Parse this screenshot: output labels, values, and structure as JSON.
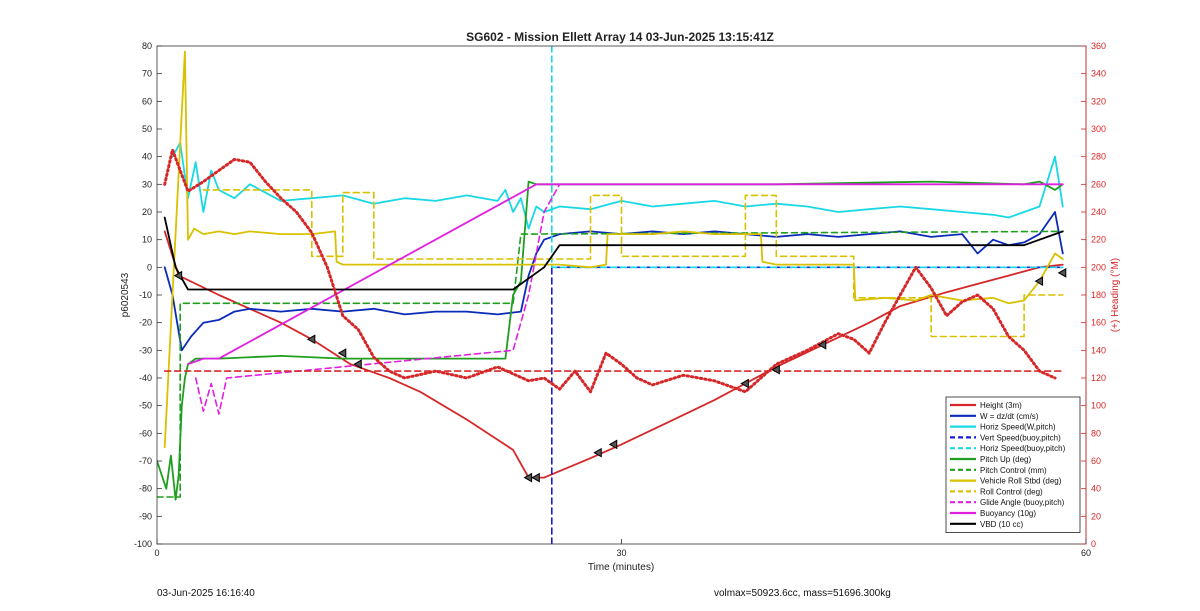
{
  "chart_data": {
    "type": "line",
    "title": "SG602 - Mission Ellett Array 14 03-Jun-2025 13:15:41Z",
    "xlabel": "Time (minutes)",
    "ylabel": "p6020543",
    "y2label": "(+) Heading (°M)",
    "xlim": [
      0,
      60
    ],
    "ylim": [
      -100,
      80
    ],
    "y2lim": [
      0,
      360
    ],
    "xticks": [
      "0",
      "30",
      "60"
    ],
    "yticks": [
      "80",
      "70",
      "60",
      "50",
      "40",
      "30",
      "20",
      "10",
      "0",
      "-10",
      "-20",
      "-30",
      "-40",
      "-50",
      "-60",
      "-70",
      "-80",
      "-90",
      "-100"
    ],
    "y2ticks": [
      "360",
      "340",
      "320",
      "300",
      "280",
      "260",
      "240",
      "220",
      "200",
      "180",
      "160",
      "140",
      "120",
      "100",
      "80",
      "60",
      "40",
      "20",
      "0"
    ],
    "grid": false,
    "legend_position": "bottom-right",
    "series": [
      {
        "name": "Height (3m)",
        "color": "#d62728",
        "style": "solid",
        "axis": "left",
        "x": [
          0.5,
          1.4,
          4,
          8,
          10,
          12.5,
          15,
          17,
          20,
          23,
          24,
          25,
          28,
          30,
          33,
          36,
          38,
          40,
          43,
          46,
          48,
          51,
          53,
          55,
          57,
          58.5
        ],
        "y": [
          13,
          -3,
          -10,
          -20,
          -26,
          -35,
          -40,
          -45,
          -55,
          -66,
          -76,
          -76,
          -69,
          -64,
          -56,
          -48,
          -42,
          -36,
          -28,
          -20,
          -14,
          -9,
          -6,
          -3,
          0,
          1
        ]
      },
      {
        "name": "W = dz/dt (cm/s)",
        "color": "#0a2bb8",
        "style": "solid",
        "axis": "left",
        "x": [
          0.5,
          1,
          1.6,
          2.2,
          3,
          4,
          5,
          6,
          8,
          10,
          12,
          14,
          16,
          18,
          20,
          22,
          23.5,
          24,
          24.5,
          25,
          26,
          28,
          30,
          32,
          34,
          36,
          38,
          40,
          42,
          44,
          46,
          48,
          50,
          52,
          53,
          54,
          55,
          56,
          57,
          58,
          58.5
        ],
        "y": [
          0,
          -10,
          -30,
          -25,
          -20,
          -19,
          -16,
          -15,
          -16,
          -15,
          -16,
          -15,
          -17,
          -16,
          -16,
          -17,
          -16,
          -3,
          5,
          10,
          12,
          13,
          12,
          13,
          12,
          13,
          12,
          11,
          12,
          11,
          12,
          13,
          11,
          12,
          5,
          10,
          8,
          9,
          12,
          20,
          5
        ]
      },
      {
        "name": "Horiz Speed(W,pitch)",
        "color": "#19d8e6",
        "style": "solid",
        "axis": "left",
        "x": [
          1,
          1.5,
          2,
          2.5,
          3,
          3.5,
          4,
          5,
          6,
          8,
          10,
          12,
          14,
          16,
          18,
          20,
          22,
          22.5,
          23,
          23.5,
          24,
          24.5,
          25,
          26,
          28,
          30,
          32,
          34,
          36,
          38,
          40,
          42,
          44,
          46,
          48,
          50,
          52,
          54,
          55,
          56,
          57,
          58,
          58.5
        ],
        "y": [
          40,
          45,
          25,
          38,
          20,
          35,
          28,
          25,
          30,
          24,
          25,
          26,
          23,
          25,
          24,
          26,
          24,
          28,
          20,
          25,
          14,
          22,
          20,
          22,
          21,
          24,
          22,
          23,
          24,
          22,
          23,
          22,
          20,
          21,
          22,
          21,
          20,
          19,
          18,
          20,
          22,
          40,
          22
        ]
      },
      {
        "name": "Vert Speed(buoy,pitch)",
        "color": "#1a1adb",
        "style": "dashed",
        "axis": "left",
        "x": [
          25.5,
          25.5,
          25.5,
          30,
          40,
          50,
          58.5
        ],
        "y": [
          -100,
          0,
          0,
          0,
          0,
          0,
          0
        ]
      },
      {
        "name": "Horiz Speed(buoy,pitch)",
        "color": "#19d8e6",
        "style": "dashed",
        "axis": "left",
        "x": [
          25.5,
          25.5,
          30,
          40,
          50,
          58.5
        ],
        "y": [
          80,
          0,
          0,
          0,
          0,
          0
        ]
      },
      {
        "name": "Pitch Up (deg)",
        "color": "#1f9e1f",
        "style": "solid",
        "axis": "left",
        "x": [
          0,
          0.6,
          0.9,
          1.2,
          1.4,
          1.6,
          1.8,
          2,
          2.5,
          4,
          8,
          12,
          16,
          20,
          22.5,
          23,
          23.5,
          24,
          24.5,
          26,
          30,
          40,
          50,
          56,
          57,
          58,
          58.5
        ],
        "y": [
          -70,
          -80,
          -68,
          -84,
          -75,
          -50,
          -40,
          -35,
          -33,
          -33,
          -32,
          -33,
          -33,
          -33,
          -33,
          -10,
          -5,
          31,
          30,
          30,
          30,
          30,
          31,
          30,
          31,
          28,
          30
        ]
      },
      {
        "name": "Pitch Control (mm)",
        "color": "#1f9e1f",
        "style": "dashed",
        "axis": "left",
        "x": [
          0,
          1.5,
          1.5,
          23,
          23.5,
          58.5
        ],
        "y": [
          -83,
          -83,
          -13,
          -13,
          12,
          13
        ]
      },
      {
        "name": "Vehicle Roll Stbd (deg)",
        "color": "#d9c000",
        "style": "solid",
        "axis": "left",
        "x": [
          0.5,
          1.8,
          2,
          2.4,
          3,
          4,
          5,
          6,
          8,
          10,
          11.5,
          11.6,
          12,
          14,
          16,
          18,
          20,
          22,
          24,
          26,
          28,
          29,
          29.1,
          32,
          34,
          36,
          38,
          39,
          39.1,
          40,
          42,
          44,
          45,
          45.1,
          47,
          49,
          50,
          52,
          54,
          55,
          56,
          57,
          58,
          58.5
        ],
        "y": [
          -65,
          78,
          10,
          14,
          12,
          13,
          12,
          13,
          12,
          12,
          13,
          2,
          1,
          1,
          1,
          1,
          1,
          1,
          1,
          1,
          0,
          1,
          12,
          12,
          13,
          12,
          12,
          12,
          2,
          1,
          1,
          1,
          1,
          -12,
          -11,
          -12,
          -10,
          -12,
          -11,
          -13,
          -12,
          -5,
          5,
          3
        ]
      },
      {
        "name": "Roll Control (deg)",
        "color": "#d9c000",
        "style": "dashed",
        "axis": "left",
        "x": [
          3,
          5,
          5,
          10,
          10,
          12,
          12,
          14,
          14,
          25,
          25,
          28,
          28,
          30,
          30,
          38,
          38,
          40,
          40,
          45,
          45,
          50,
          50,
          56,
          56,
          58.5
        ],
        "y": [
          28,
          28,
          28,
          28,
          4,
          4,
          27,
          27,
          3,
          3,
          3,
          3,
          26,
          26,
          4,
          4,
          26,
          26,
          4,
          4,
          -11,
          -11,
          -25,
          -25,
          -10,
          -10
        ]
      },
      {
        "name": "Glide Angle (buoy,pitch)",
        "color": "#e020e0",
        "style": "dashed",
        "axis": "left",
        "x": [
          2.5,
          3,
          3.5,
          4,
          4.5,
          23,
          24,
          25,
          26
        ],
        "y": [
          -40,
          -52,
          -42,
          -53,
          -40,
          -30,
          -10,
          20,
          30
        ]
      },
      {
        "name": "Buoyancy (10g)",
        "color": "#e020e0",
        "style": "solid",
        "axis": "left",
        "x": [
          2,
          3,
          4,
          24.5,
          30,
          40,
          50,
          56,
          58.5
        ],
        "y": [
          -35,
          -33,
          -33,
          30,
          30,
          30,
          30,
          30,
          30
        ]
      },
      {
        "name": "VBD (10 cc)",
        "color": "#000000",
        "style": "solid",
        "axis": "left",
        "x": [
          0.5,
          1.2,
          2,
          10,
          20,
          23,
          25,
          26,
          30,
          40,
          50,
          56,
          58.5
        ],
        "y": [
          18,
          0,
          -8,
          -8,
          -8,
          -8,
          0,
          8,
          8,
          8,
          8,
          8,
          13
        ]
      },
      {
        "name": "Heading (target)",
        "color": "#d62728",
        "style": "dashed",
        "axis": "right",
        "x": [
          0.5,
          58.5
        ],
        "y": [
          125,
          125
        ]
      },
      {
        "name": "Heading",
        "color": "#d62728",
        "style": "dotted",
        "axis": "right",
        "x": [
          0.5,
          1,
          1.5,
          2,
          3,
          4,
          5,
          6,
          7,
          8,
          9,
          10,
          11,
          12,
          13,
          14,
          15,
          16,
          18,
          20,
          22,
          24,
          25,
          26,
          27,
          28,
          29,
          30,
          31,
          32,
          34,
          36,
          38,
          40,
          42,
          44,
          45,
          46,
          47,
          48,
          49,
          50,
          51,
          52,
          53,
          54,
          55,
          56,
          57,
          58
        ],
        "y": [
          260,
          285,
          270,
          255,
          262,
          270,
          278,
          276,
          262,
          250,
          240,
          225,
          200,
          165,
          155,
          135,
          125,
          120,
          125,
          120,
          128,
          118,
          120,
          112,
          125,
          110,
          138,
          130,
          120,
          115,
          122,
          118,
          110,
          130,
          140,
          152,
          148,
          138,
          160,
          180,
          200,
          185,
          165,
          175,
          180,
          170,
          150,
          140,
          125,
          120
        ]
      }
    ],
    "legend": [
      {
        "label": "Height (3m)",
        "color": "#d62728",
        "style": "solid"
      },
      {
        "label": "W = dz/dt (cm/s)",
        "color": "#0a2bb8",
        "style": "solid"
      },
      {
        "label": "Horiz Speed(W,pitch)",
        "color": "#19d8e6",
        "style": "solid"
      },
      {
        "label": "Vert Speed(buoy,pitch)",
        "color": "#1a1adb",
        "style": "dashed"
      },
      {
        "label": "Horiz Speed(buoy,pitch)",
        "color": "#19d8e6",
        "style": "dashed"
      },
      {
        "label": "Pitch Up (deg)",
        "color": "#1f9e1f",
        "style": "solid"
      },
      {
        "label": "Pitch Control (mm)",
        "color": "#1f9e1f",
        "style": "dashed"
      },
      {
        "label": "Vehicle Roll Stbd (deg)",
        "color": "#d9c000",
        "style": "solid"
      },
      {
        "label": "Roll Control (deg)",
        "color": "#d9c000",
        "style": "dashed"
      },
      {
        "label": "Glide Angle (buoy,pitch)",
        "color": "#e020e0",
        "style": "dashed"
      },
      {
        "label": "Buoyancy (10g)",
        "color": "#e020e0",
        "style": "solid"
      },
      {
        "label": "VBD (10 cc)",
        "color": "#000000",
        "style": "solid"
      }
    ],
    "markers": {
      "color": "#000000",
      "x": [
        1.4,
        10,
        12,
        13,
        24,
        24.5,
        28.5,
        29.5,
        38,
        40,
        43,
        57,
        58.5
      ],
      "y": [
        -3,
        -26,
        -31,
        -35,
        -76,
        -76,
        -67,
        -64,
        -42,
        -37,
        -28,
        -5,
        -2
      ]
    }
  },
  "footer": {
    "date": "03-Jun-2025 16:16:40",
    "info": "volmax=50923.6cc, mass=51696.300kg"
  }
}
